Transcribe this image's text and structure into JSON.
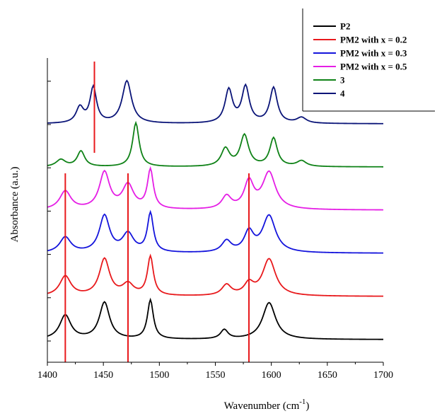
{
  "chart_data": {
    "type": "line",
    "xlabel": "Wavenumber (cm",
    "xlabel_sup": "-1",
    "xlabel_close": ")",
    "ylabel": "Absorbance (a.u.)",
    "xlim": [
      1400,
      1700
    ],
    "x_ticks": [
      "1400",
      "1450",
      "1500",
      "1550",
      "1600",
      "1650",
      "1700"
    ],
    "y_ticks_labeled": false,
    "legend_position": "top-right",
    "marker_lines": [
      1442,
      1416,
      1472,
      1580
    ],
    "series": [
      {
        "name": "P2",
        "color": "#000000",
        "baseline": 0.0,
        "peaks": [
          [
            1416,
            0.34,
            6
          ],
          [
            1451,
            0.52,
            5.5
          ],
          [
            1492,
            0.55,
            3.2
          ],
          [
            1558,
            0.13,
            4
          ],
          [
            1598,
            0.52,
            7
          ]
        ],
        "x": [
          1400,
          1416,
          1430,
          1451,
          1470,
          1492,
          1510,
          1558,
          1580,
          1598,
          1620,
          1700
        ],
        "y": [
          0.08,
          0.34,
          0.1,
          0.52,
          0.05,
          0.55,
          0.02,
          0.13,
          0.12,
          0.52,
          0.03,
          0.02
        ]
      },
      {
        "name": "PM2 with x = 0.2",
        "color": "#e8191c",
        "baseline": 1.0,
        "peaks": [
          [
            1416,
            0.28,
            6
          ],
          [
            1451,
            0.52,
            5.5
          ],
          [
            1472,
            0.16,
            6
          ],
          [
            1492,
            0.55,
            3.2
          ],
          [
            1560,
            0.15,
            5
          ],
          [
            1580,
            0.16,
            5
          ],
          [
            1598,
            0.52,
            7
          ]
        ],
        "x": [
          1400,
          1416,
          1430,
          1451,
          1472,
          1492,
          1510,
          1560,
          1580,
          1598,
          1620,
          1700
        ],
        "y": [
          0.06,
          0.28,
          0.08,
          0.52,
          0.16,
          0.55,
          0.02,
          0.15,
          0.16,
          0.52,
          0.03,
          0.02
        ]
      },
      {
        "name": "PM2 with x = 0.3",
        "color": "#1414dc",
        "baseline": 2.0,
        "peaks": [
          [
            1416,
            0.22,
            6
          ],
          [
            1451,
            0.52,
            5.5
          ],
          [
            1472,
            0.26,
            6
          ],
          [
            1492,
            0.55,
            3.2
          ],
          [
            1560,
            0.16,
            5
          ],
          [
            1580,
            0.28,
            5
          ],
          [
            1598,
            0.52,
            7
          ]
        ],
        "x": [
          1400,
          1416,
          1430,
          1451,
          1472,
          1492,
          1510,
          1560,
          1580,
          1598,
          1620,
          1700
        ],
        "y": [
          0.05,
          0.22,
          0.08,
          0.52,
          0.26,
          0.55,
          0.02,
          0.16,
          0.28,
          0.52,
          0.03,
          0.02
        ]
      },
      {
        "name": "PM2 with x = 0.5",
        "color": "#e51ee5",
        "baseline": 3.0,
        "peaks": [
          [
            1416,
            0.26,
            6
          ],
          [
            1451,
            0.52,
            5.5
          ],
          [
            1472,
            0.34,
            6
          ],
          [
            1492,
            0.55,
            3.2
          ],
          [
            1560,
            0.18,
            5
          ],
          [
            1580,
            0.38,
            5
          ],
          [
            1598,
            0.52,
            7
          ]
        ],
        "x": [
          1400,
          1416,
          1430,
          1451,
          1472,
          1492,
          1510,
          1560,
          1580,
          1598,
          1620,
          1700
        ],
        "y": [
          0.06,
          0.26,
          0.1,
          0.52,
          0.34,
          0.55,
          0.02,
          0.18,
          0.38,
          0.52,
          0.04,
          0.02
        ]
      },
      {
        "name": "3",
        "color": "#0f8217",
        "baseline": 4.0,
        "peaks": [
          [
            1412,
            0.1,
            5
          ],
          [
            1430,
            0.22,
            4
          ],
          [
            1479,
            0.62,
            3.5
          ],
          [
            1559,
            0.25,
            4.5
          ],
          [
            1576,
            0.44,
            4.5
          ],
          [
            1602,
            0.4,
            4
          ],
          [
            1627,
            0.08,
            5
          ]
        ],
        "x": [
          1400,
          1412,
          1430,
          1479,
          1500,
          1559,
          1576,
          1602,
          1627,
          1700
        ],
        "y": [
          0.04,
          0.1,
          0.22,
          0.62,
          0.02,
          0.25,
          0.44,
          0.4,
          0.08,
          0.02
        ]
      },
      {
        "name": "4",
        "color": "#0a1478",
        "baseline": 5.0,
        "peaks": [
          [
            1429,
            0.22,
            4
          ],
          [
            1441,
            0.5,
            3.5
          ],
          [
            1471,
            0.6,
            5
          ],
          [
            1562,
            0.47,
            4
          ],
          [
            1577,
            0.51,
            4
          ],
          [
            1602,
            0.5,
            4
          ],
          [
            1627,
            0.08,
            5
          ]
        ],
        "x": [
          1400,
          1429,
          1441,
          1458,
          1471,
          1490,
          1562,
          1577,
          1602,
          1627,
          1700
        ],
        "y": [
          0.04,
          0.22,
          0.5,
          0.1,
          0.6,
          0.03,
          0.47,
          0.51,
          0.5,
          0.08,
          0.02
        ]
      }
    ]
  }
}
